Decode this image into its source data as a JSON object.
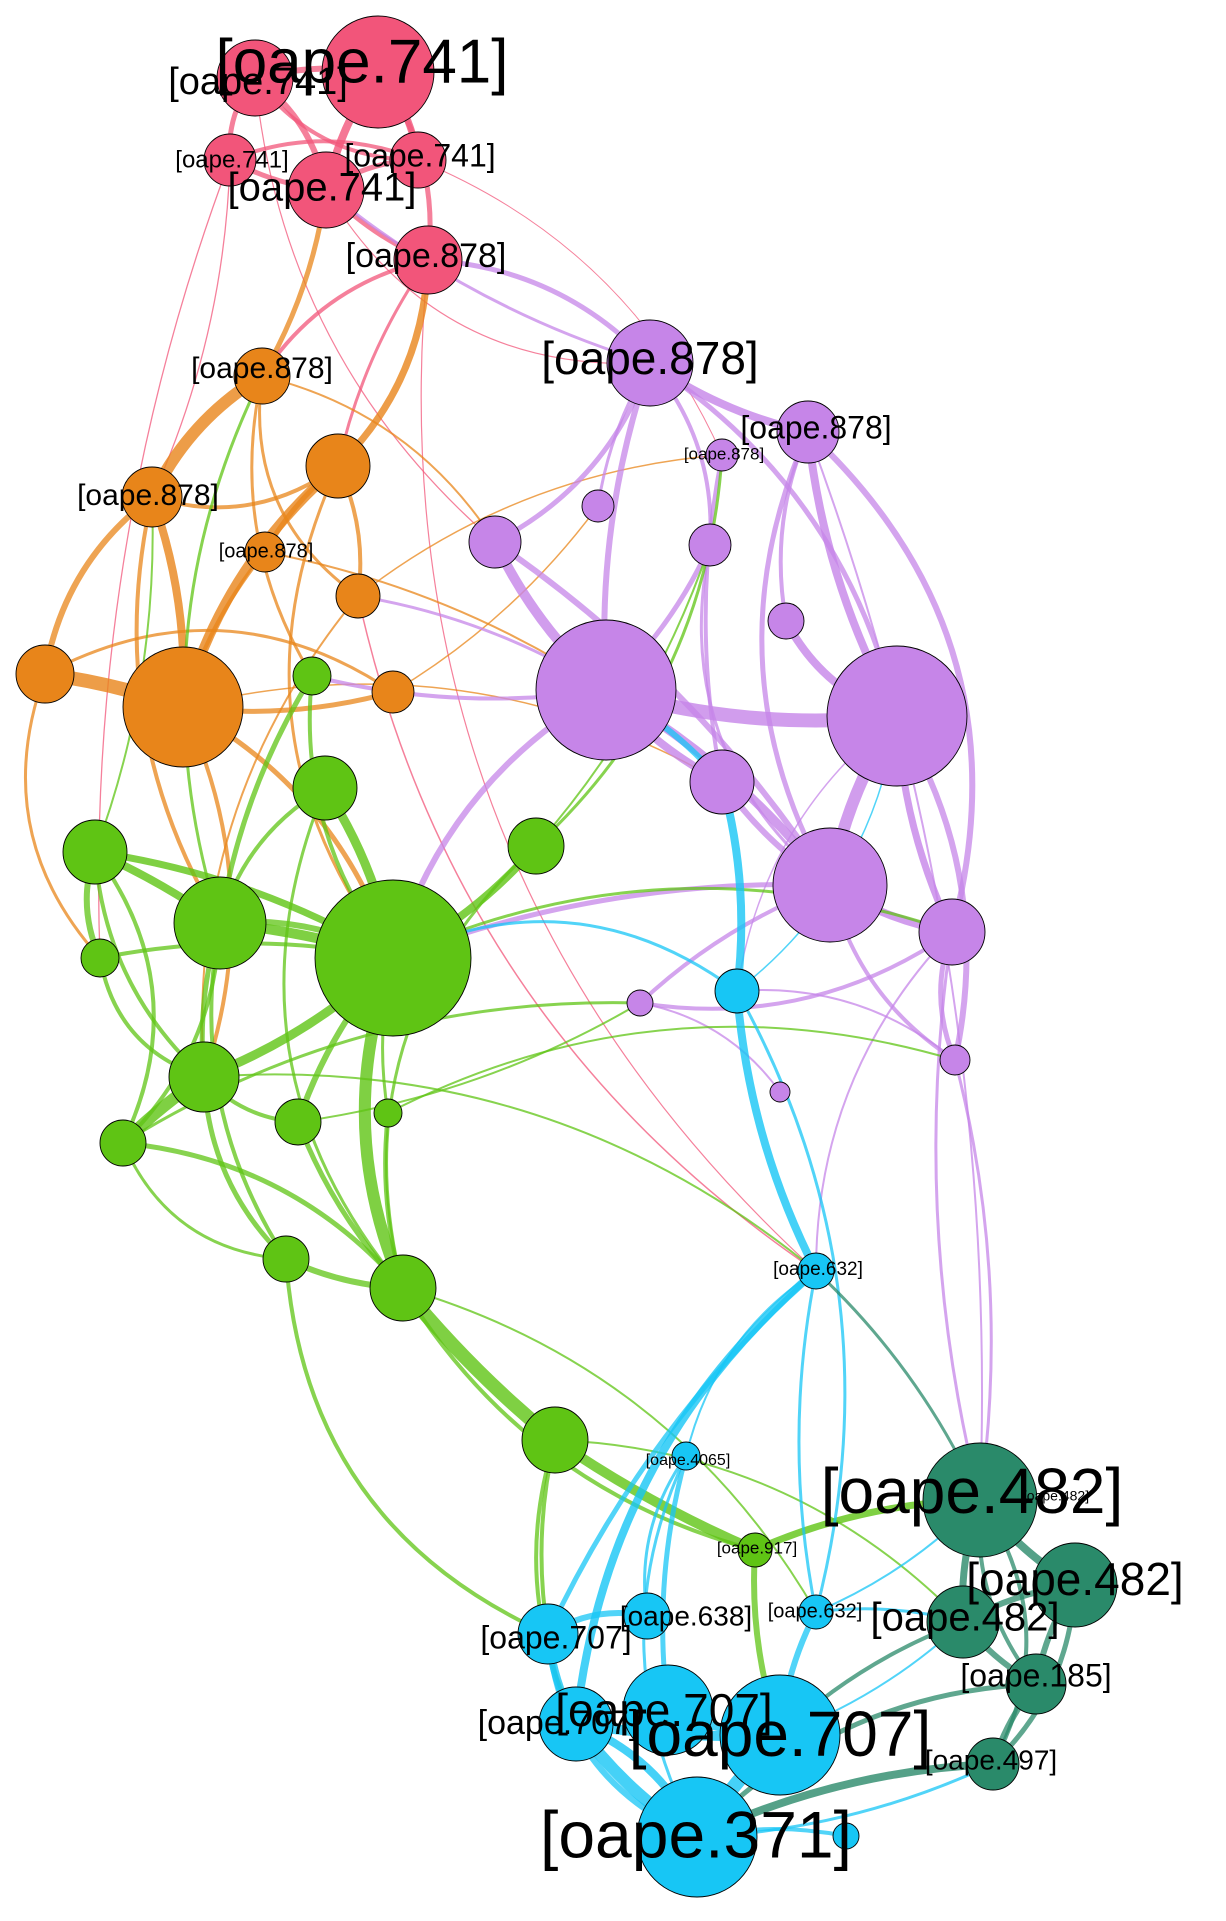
{
  "graph": {
    "colors": {
      "pink": "#f2557a",
      "orange": "#e8851a",
      "purple": "#c685e8",
      "green": "#5fc414",
      "cyan": "#17c6f5",
      "teal": "#2a8a6a"
    },
    "labels": {
      "p1": "[oape.741]",
      "p2": "[oape.741]",
      "p3": "[oape.741]",
      "p4": "[oape.741]",
      "p5": "[oape.741]",
      "p6": "[oape.878]",
      "o1": "[oape.878]",
      "o2": "[oape.878]",
      "o4": "[oape.878]",
      "u1": "[oape.878]",
      "u2": "[oape.878]",
      "u3": "[oape.878]",
      "c1": "[oape.632]",
      "c2": "[oape.4065]",
      "g22": "[oape.917]",
      "c3": "[oape.638]",
      "c4": "[oape.632]",
      "c5": "[oape.707]",
      "c6": "[oape.707]",
      "c7": "[oape.707]",
      "c8": "[oape.707]",
      "c9": "[oape.707]",
      "c10": "[oape.371]",
      "t1": "[oape.482]",
      "t1b": "[oape.482]",
      "t2": "[oape.482]",
      "t3": "[oape.482]",
      "t4": "[oape.185]",
      "t5": "[oape.497]"
    }
  }
}
